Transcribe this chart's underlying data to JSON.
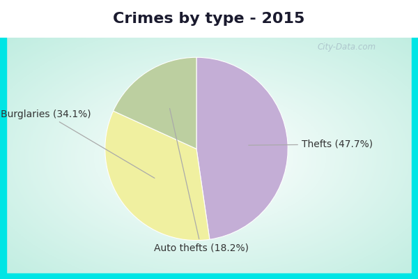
{
  "title": "Crimes by type - 2015",
  "slices": [
    {
      "label": "Thefts (47.7%)",
      "value": 47.7,
      "color": "#c4aed6"
    },
    {
      "label": "Burglaries (34.1%)",
      "value": 34.1,
      "color": "#f0f0a0"
    },
    {
      "label": "Auto thefts (18.2%)",
      "value": 18.2,
      "color": "#bccfa0"
    }
  ],
  "bg_top_color": "#00e5e5",
  "bg_main_color": "#d0ede5",
  "title_fontsize": 16,
  "label_fontsize": 10,
  "watermark": "City-Data.com",
  "startangle": 90,
  "title_color": "#1a1a2e",
  "label_color": "#333333",
  "line_color": "#aaaaaa",
  "top_bar_height": 0.135
}
